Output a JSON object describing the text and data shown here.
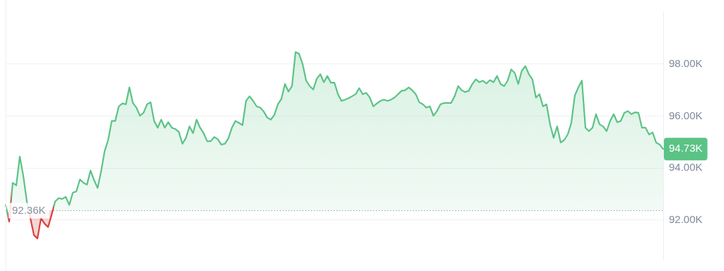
{
  "chart_data": {
    "type": "area",
    "categories": [
      null,
      null,
      null,
      null,
      null,
      null,
      null,
      null,
      null,
      null,
      null,
      null,
      null,
      null,
      null,
      null,
      null,
      null,
      null,
      null,
      null,
      null,
      null,
      null,
      null,
      null,
      null,
      null,
      null,
      null,
      null,
      null,
      null,
      null,
      null,
      null,
      null,
      null,
      null,
      null,
      null,
      null,
      null,
      null,
      null,
      null,
      null,
      null,
      null,
      null,
      null,
      null,
      null,
      null,
      null,
      null,
      null,
      null,
      null,
      null,
      null,
      null,
      null,
      null,
      null,
      null,
      null,
      null,
      null,
      null,
      null,
      null,
      null,
      null,
      null,
      null,
      null,
      null,
      null,
      null,
      null,
      null,
      null,
      null,
      null,
      null,
      null,
      null,
      null,
      null,
      null,
      null,
      null,
      null,
      null,
      null,
      null,
      null,
      null,
      null,
      null,
      null,
      null,
      null,
      null,
      null,
      null,
      null,
      null,
      null,
      null,
      null,
      null,
      null,
      null,
      null,
      null,
      null,
      null,
      null,
      null,
      null,
      null,
      null,
      null,
      null,
      null,
      null,
      null,
      null,
      null,
      null,
      null,
      null,
      null,
      null,
      null,
      null,
      null,
      null,
      null,
      null,
      null,
      null,
      null,
      null,
      null,
      null,
      null,
      null,
      null,
      null,
      null,
      null,
      null,
      null,
      null,
      null,
      null,
      null,
      null,
      null,
      null,
      null,
      null,
      null,
      null,
      null,
      null,
      null,
      null,
      null,
      null,
      null,
      null,
      null,
      null,
      null,
      null,
      null,
      null,
      null,
      null,
      null,
      null,
      null,
      null
    ],
    "series": [
      {
        "color": "#5bc386",
        "values": [
          92580,
          91940,
          93430,
          93330,
          94440,
          93690,
          92710,
          92070,
          91420,
          91290,
          92070,
          91860,
          91730,
          92200,
          92710,
          92840,
          92810,
          92890,
          92580,
          93050,
          93100,
          93560,
          93430,
          93360,
          93900,
          93540,
          93230,
          93870,
          94650,
          95080,
          95810,
          95810,
          96370,
          96480,
          96450,
          97100,
          96500,
          96320,
          96010,
          96120,
          96450,
          96530,
          95810,
          95550,
          95860,
          95550,
          95760,
          95550,
          95500,
          95390,
          94930,
          95160,
          95600,
          95340,
          95860,
          95550,
          95340,
          95030,
          95030,
          95190,
          95110,
          94900,
          94930,
          95140,
          95550,
          95810,
          95730,
          95650,
          96580,
          96760,
          96580,
          96370,
          96320,
          96170,
          95940,
          95860,
          96040,
          96450,
          96660,
          97230,
          96940,
          97150,
          98460,
          98390,
          98000,
          97360,
          97150,
          97020,
          97430,
          97610,
          97300,
          97540,
          97280,
          97280,
          96840,
          96580,
          96630,
          96680,
          96760,
          96840,
          97070,
          96840,
          96890,
          96710,
          96370,
          96480,
          96580,
          96630,
          96580,
          96630,
          96710,
          96840,
          96970,
          96990,
          97100,
          96990,
          96840,
          96530,
          96450,
          96320,
          96370,
          96010,
          96190,
          96450,
          96500,
          96500,
          96500,
          96760,
          97150,
          96990,
          96920,
          96970,
          97230,
          97410,
          97300,
          97360,
          97250,
          97380,
          97300,
          97540,
          97230,
          97150,
          97360,
          97790,
          97660,
          97230,
          97740,
          97920,
          97610,
          97410,
          96710,
          96840,
          96370,
          96450,
          95680,
          95160,
          95600,
          94980,
          95080,
          95290,
          95730,
          96790,
          97100,
          97360,
          95550,
          95420,
          95550,
          96070,
          95680,
          95600,
          95420,
          95810,
          96070,
          95760,
          95810,
          96120,
          96190,
          96070,
          96140,
          96120,
          95550,
          95550,
          95290,
          95370,
          94980,
          94900,
          94730
        ],
        "colors": [
          "#5bc386",
          "#d9403f",
          "#5bc386",
          "#5bc386",
          "#5bc386",
          "#5bc386",
          "#5bc386",
          "#d9403f",
          "#d9403f",
          "#d9403f",
          "#d9403f",
          "#d9403f",
          "#d9403f",
          "#d9403f",
          "#5bc386",
          "#5bc386",
          "#5bc386",
          "#5bc386",
          "#5bc386",
          "#5bc386",
          "#5bc386",
          "#5bc386",
          "#5bc386",
          "#5bc386",
          "#5bc386",
          "#5bc386",
          "#5bc386",
          "#5bc386",
          "#5bc386",
          "#5bc386",
          "#5bc386",
          "#5bc386",
          "#5bc386",
          "#5bc386",
          "#5bc386",
          "#5bc386",
          "#5bc386",
          "#5bc386",
          "#5bc386",
          "#5bc386",
          "#5bc386",
          "#5bc386",
          "#5bc386",
          "#5bc386",
          "#5bc386",
          "#5bc386",
          "#5bc386",
          "#5bc386",
          "#5bc386",
          "#5bc386",
          "#5bc386",
          "#5bc386",
          "#5bc386",
          "#5bc386",
          "#5bc386",
          "#5bc386",
          "#5bc386",
          "#5bc386",
          "#5bc386",
          "#5bc386",
          "#5bc386",
          "#5bc386",
          "#5bc386",
          "#5bc386",
          "#5bc386",
          "#5bc386",
          "#5bc386",
          "#5bc386",
          "#5bc386",
          "#5bc386",
          "#5bc386",
          "#5bc386",
          "#5bc386",
          "#5bc386",
          "#5bc386",
          "#5bc386",
          "#5bc386",
          "#5bc386",
          "#5bc386",
          "#5bc386",
          "#5bc386",
          "#5bc386",
          "#5bc386",
          "#5bc386",
          "#5bc386",
          "#5bc386",
          "#5bc386",
          "#5bc386",
          "#5bc386",
          "#5bc386",
          "#5bc386",
          "#5bc386",
          "#5bc386",
          "#5bc386",
          "#5bc386",
          "#5bc386",
          "#5bc386",
          "#5bc386",
          "#5bc386",
          "#5bc386",
          "#5bc386",
          "#5bc386",
          "#5bc386",
          "#5bc386",
          "#5bc386",
          "#5bc386",
          "#5bc386",
          "#5bc386",
          "#5bc386",
          "#5bc386",
          "#5bc386",
          "#5bc386",
          "#5bc386",
          "#5bc386",
          "#5bc386",
          "#5bc386",
          "#5bc386",
          "#5bc386",
          "#5bc386",
          "#5bc386",
          "#5bc386",
          "#5bc386",
          "#5bc386",
          "#5bc386",
          "#5bc386",
          "#5bc386",
          "#5bc386",
          "#5bc386",
          "#5bc386",
          "#5bc386",
          "#5bc386",
          "#5bc386",
          "#5bc386",
          "#5bc386",
          "#5bc386",
          "#5bc386",
          "#5bc386",
          "#5bc386",
          "#5bc386",
          "#5bc386",
          "#5bc386",
          "#5bc386",
          "#5bc386",
          "#5bc386",
          "#5bc386",
          "#5bc386",
          "#5bc386",
          "#5bc386",
          "#5bc386",
          "#5bc386",
          "#5bc386",
          "#5bc386",
          "#5bc386",
          "#5bc386",
          "#5bc386",
          "#5bc386",
          "#5bc386",
          "#5bc386",
          "#5bc386",
          "#5bc386",
          "#5bc386",
          "#5bc386",
          "#5bc386",
          "#5bc386",
          "#5bc386",
          "#5bc386",
          "#5bc386",
          "#5bc386",
          "#5bc386",
          "#5bc386",
          "#5bc386",
          "#5bc386",
          "#5bc386",
          "#5bc386",
          "#5bc386",
          "#5bc386",
          "#5bc386",
          "#5bc386",
          "#5bc386",
          "#5bc386",
          "#5bc386",
          "#5bc386",
          "#5bc386",
          "#5bc386",
          "#5bc386",
          "#5bc386",
          "#5bc386"
        ]
      }
    ],
    "ylim": [
      90500,
      100000
    ],
    "yticks": [
      {
        "value": 92000,
        "label": "92.00K"
      },
      {
        "value": 94000,
        "label": "94.00K"
      },
      {
        "value": 96000,
        "label": "96.00K"
      },
      {
        "value": 98000,
        "label": "98.00K"
      }
    ],
    "grid": "y",
    "tick_labels": "y",
    "ref_lines": [
      {
        "axis": "y",
        "value": 92360,
        "label": "92.36K",
        "color": "#8a8f9c",
        "line_style": "dotted"
      }
    ],
    "annotations": [
      "94.73K"
    ]
  }
}
